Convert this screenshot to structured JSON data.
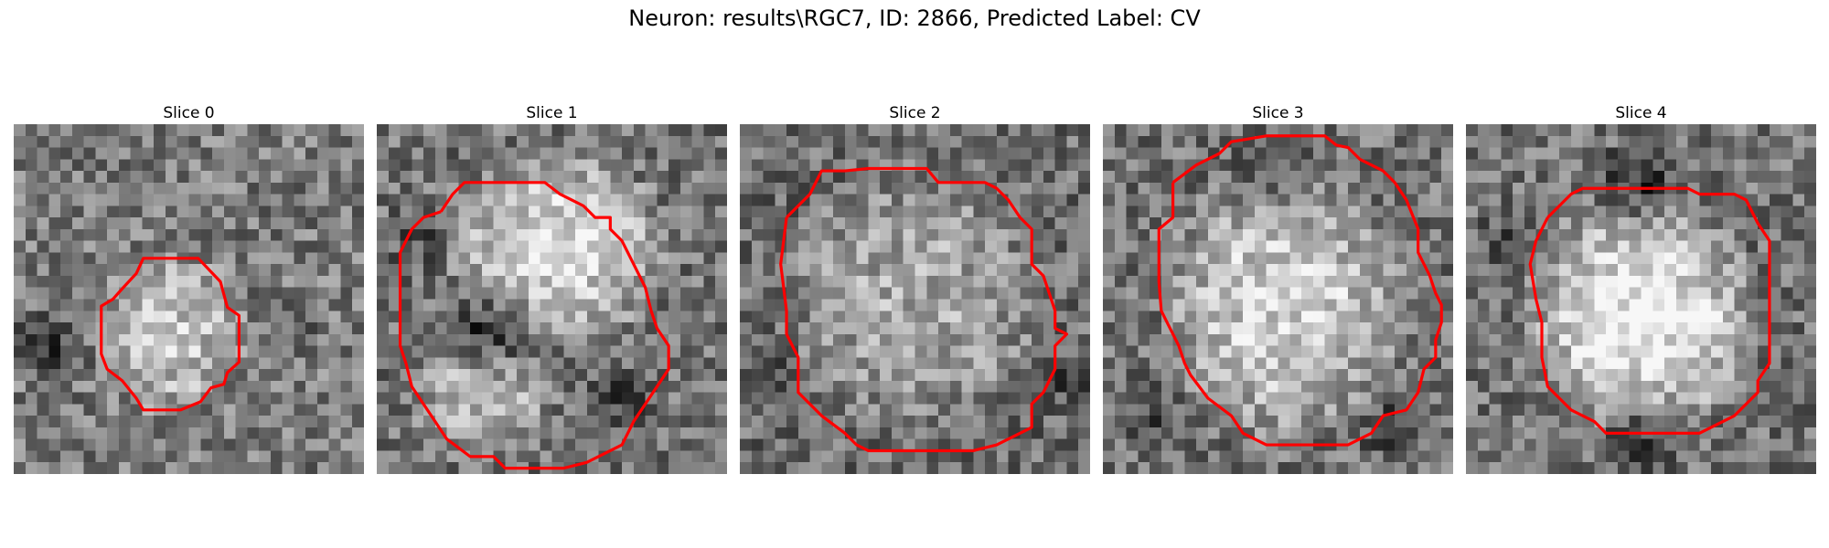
{
  "figure": {
    "title": "Neuron: results\\RGC7, ID: 2866, Predicted Label: CV"
  },
  "slices": [
    {
      "label": "Slice 0"
    },
    {
      "label": "Slice 1"
    },
    {
      "label": "Slice 2"
    },
    {
      "label": "Slice 3"
    },
    {
      "label": "Slice 4"
    }
  ],
  "colors": {
    "contour": "#ff0000",
    "background": "#ffffff"
  }
}
